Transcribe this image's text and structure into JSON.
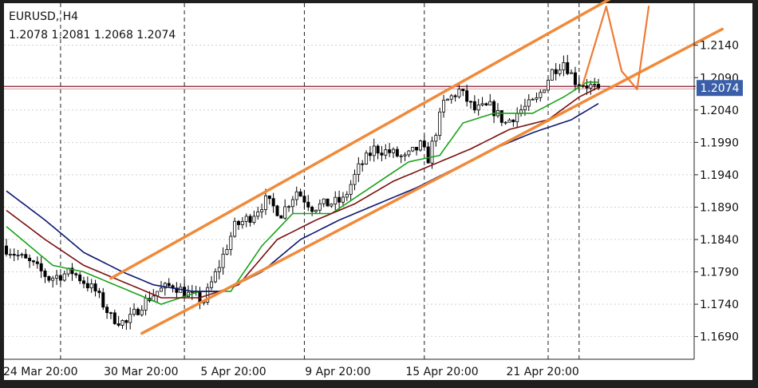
{
  "symbol_timeframe": "EURUSD, H4",
  "ohlc_readout": "1.2078 1.2081 1.2068 1.2074",
  "current_price_label": "1.2074",
  "colors": {
    "background": "#ffffff",
    "frame": "#222222",
    "candle": "#000000",
    "ma_fast": "#19a319",
    "ma_mid": "#7b1010",
    "ma_slow": "#0c1770",
    "channel": "#f08a3a",
    "scribble": "#ef7b33",
    "price_line": "#8a1a2a",
    "price_label_bg": "#3a5fa8",
    "grid": "#b5b5b5",
    "separator": "#222222"
  },
  "chart_data": {
    "type": "candlestick",
    "title": "EURUSD, H4",
    "y_tick_labels": [
      "1.2140",
      "1.2090",
      "1.2040",
      "1.1990",
      "1.1940",
      "1.1890",
      "1.1840",
      "1.1790",
      "1.1740",
      "1.1690"
    ],
    "x_tick_labels": [
      "24 Mar 20:00",
      "30 Mar 20:00",
      "5 Apr 20:00",
      "9 Apr 20:00",
      "15 Apr 20:00",
      "21 Apr 20:00"
    ],
    "ylim": [
      1.1655,
      1.2205
    ],
    "grid": true,
    "bar_count": 154,
    "last_close": 1.2074,
    "price_path": [
      [
        0,
        1.183
      ],
      [
        8,
        1.18
      ],
      [
        12,
        1.178
      ],
      [
        18,
        1.179
      ],
      [
        24,
        1.176
      ],
      [
        28,
        1.172
      ],
      [
        32,
        1.171
      ],
      [
        36,
        1.174
      ],
      [
        40,
        1.176
      ],
      [
        44,
        1.177
      ],
      [
        48,
        1.1755
      ],
      [
        52,
        1.1745
      ],
      [
        56,
        1.18
      ],
      [
        60,
        1.186
      ],
      [
        64,
        1.1875
      ],
      [
        68,
        1.19
      ],
      [
        72,
        1.188
      ],
      [
        76,
        1.1915
      ],
      [
        80,
        1.189
      ],
      [
        84,
        1.1895
      ],
      [
        88,
        1.19
      ],
      [
        92,
        1.195
      ],
      [
        96,
        1.198
      ],
      [
        100,
        1.1975
      ],
      [
        104,
        1.1965
      ],
      [
        108,
        1.1985
      ],
      [
        110,
        1.1965
      ],
      [
        114,
        1.205
      ],
      [
        118,
        1.207
      ],
      [
        122,
        1.204
      ],
      [
        126,
        1.2045
      ],
      [
        130,
        1.202
      ],
      [
        134,
        1.204
      ],
      [
        138,
        1.2055
      ],
      [
        142,
        1.21
      ],
      [
        145,
        1.2115
      ],
      [
        148,
        1.2085
      ],
      [
        153,
        1.2074
      ]
    ],
    "series": [
      {
        "name": "MA fast",
        "values": [
          [
            0,
            1.186
          ],
          [
            12,
            1.18
          ],
          [
            20,
            1.179
          ],
          [
            30,
            1.1765
          ],
          [
            40,
            1.174
          ],
          [
            50,
            1.176
          ],
          [
            58,
            1.176
          ],
          [
            66,
            1.183
          ],
          [
            74,
            1.188
          ],
          [
            84,
            1.188
          ],
          [
            94,
            1.192
          ],
          [
            104,
            1.196
          ],
          [
            112,
            1.197
          ],
          [
            118,
            1.202
          ],
          [
            126,
            1.2035
          ],
          [
            136,
            1.2035
          ],
          [
            144,
            1.206
          ],
          [
            150,
            1.2083
          ],
          [
            153,
            1.2083
          ]
        ]
      },
      {
        "name": "MA mid",
        "values": [
          [
            0,
            1.1885
          ],
          [
            10,
            1.184
          ],
          [
            20,
            1.18
          ],
          [
            30,
            1.1775
          ],
          [
            40,
            1.175
          ],
          [
            50,
            1.175
          ],
          [
            60,
            1.177
          ],
          [
            70,
            1.184
          ],
          [
            80,
            1.187
          ],
          [
            90,
            1.1895
          ],
          [
            100,
            1.193
          ],
          [
            110,
            1.1955
          ],
          [
            120,
            1.198
          ],
          [
            130,
            1.201
          ],
          [
            140,
            1.2025
          ],
          [
            148,
            1.206
          ],
          [
            153,
            1.2075
          ]
        ]
      },
      {
        "name": "MA slow",
        "values": [
          [
            0,
            1.1915
          ],
          [
            10,
            1.187
          ],
          [
            20,
            1.182
          ],
          [
            30,
            1.179
          ],
          [
            38,
            1.177
          ],
          [
            48,
            1.176
          ],
          [
            56,
            1.176
          ],
          [
            66,
            1.179
          ],
          [
            76,
            1.184
          ],
          [
            86,
            1.187
          ],
          [
            96,
            1.1895
          ],
          [
            106,
            1.192
          ],
          [
            116,
            1.195
          ],
          [
            126,
            1.198
          ],
          [
            136,
            1.2005
          ],
          [
            146,
            1.2025
          ],
          [
            153,
            1.205
          ]
        ]
      }
    ],
    "channel": {
      "upper": [
        [
          27,
          1.178
        ],
        [
          157,
          1.2215
        ]
      ],
      "lower": [
        [
          35,
          1.1695
        ],
        [
          185,
          1.2165
        ]
      ]
    },
    "projection_scribble": [
      [
        149,
        1.208
      ],
      [
        155,
        1.22
      ],
      [
        159,
        1.21
      ],
      [
        163,
        1.2072
      ],
      [
        166,
        1.22
      ]
    ],
    "vertical_separators_at_bar": [
      14,
      46,
      77,
      108,
      140,
      148
    ]
  }
}
